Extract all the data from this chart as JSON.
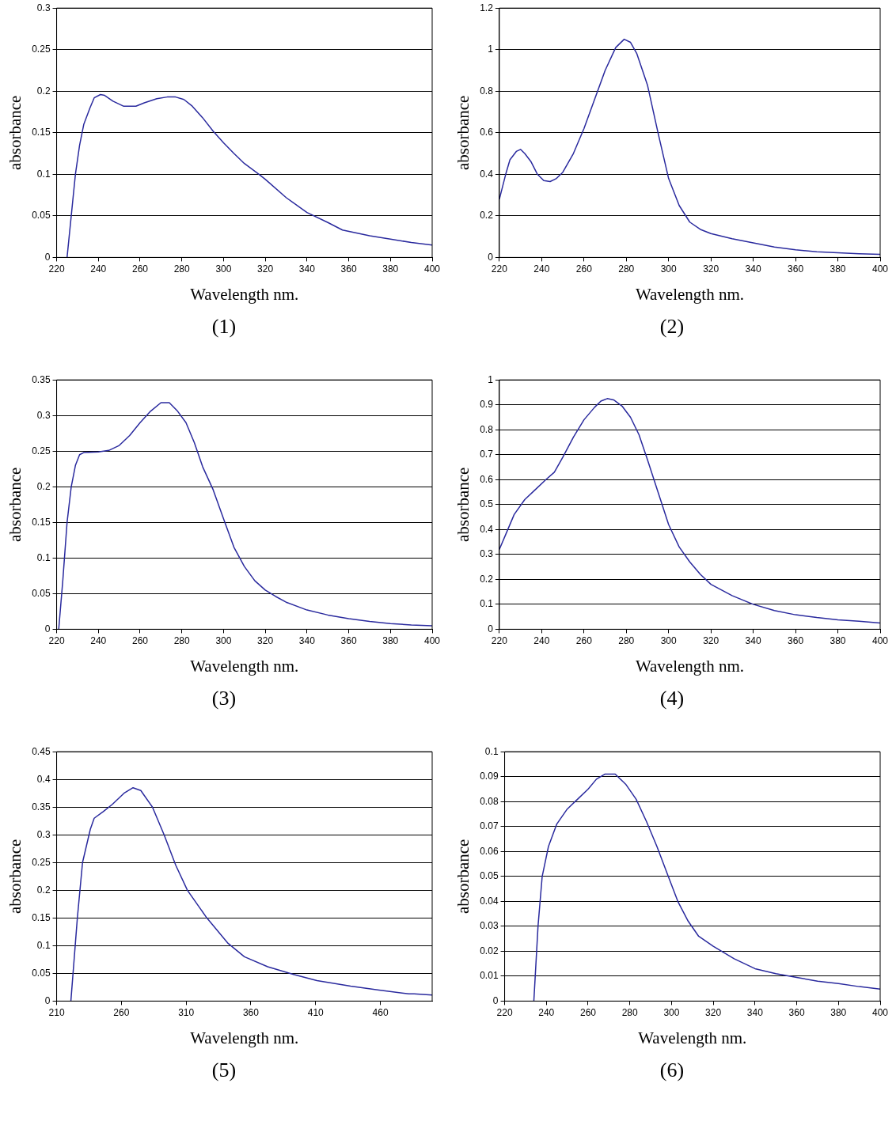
{
  "chart_data": [
    {
      "type": "line",
      "xlabel": "Wavelength nm.",
      "ylabel": "absorbance",
      "annotations": [
        "(1)"
      ],
      "grid": "y",
      "marker": "none",
      "line_style": "solid",
      "legend": false,
      "xlim": [
        220,
        400
      ],
      "xticks": [
        220,
        240,
        260,
        280,
        300,
        320,
        340,
        360,
        380,
        400
      ],
      "ylim": [
        0,
        0.3
      ],
      "yticks": [
        0,
        0.05,
        0.1,
        0.15,
        0.2,
        0.25,
        0.3
      ],
      "series": [
        {
          "color": "#2a2a9e",
          "x": [
            225,
            227,
            229,
            231,
            233,
            236,
            238,
            241,
            243,
            247,
            252,
            258,
            262,
            268,
            273,
            277,
            281,
            285,
            290,
            295,
            300,
            305,
            310,
            317,
            320,
            330,
            340,
            350,
            357,
            370,
            380,
            390,
            400
          ],
          "values": [
            0,
            0.05,
            0.1,
            0.135,
            0.16,
            0.18,
            0.192,
            0.196,
            0.195,
            0.188,
            0.182,
            0.182,
            0.186,
            0.191,
            0.193,
            0.193,
            0.19,
            0.182,
            0.168,
            0.152,
            0.138,
            0.125,
            0.113,
            0.1,
            0.094,
            0.072,
            0.054,
            0.042,
            0.033,
            0.026,
            0.022,
            0.018,
            0.015
          ]
        }
      ]
    },
    {
      "type": "line",
      "xlabel": "Wavelength nm.",
      "ylabel": "absorbance",
      "annotations": [
        "(2)"
      ],
      "grid": "y",
      "marker": "none",
      "line_style": "solid",
      "legend": false,
      "xlim": [
        220,
        400
      ],
      "xticks": [
        220,
        240,
        260,
        280,
        300,
        320,
        340,
        360,
        380,
        400
      ],
      "ylim": [
        0,
        1.2
      ],
      "yticks": [
        0,
        0.2,
        0.4,
        0.6,
        0.8,
        1,
        1.2
      ],
      "series": [
        {
          "color": "#2a2a9e",
          "x": [
            220,
            223,
            225,
            228,
            230,
            232,
            235,
            238,
            241,
            244,
            247,
            250,
            255,
            260,
            265,
            270,
            275,
            279,
            282,
            285,
            290,
            295,
            300,
            305,
            310,
            315,
            320,
            330,
            340,
            350,
            360,
            370,
            380,
            390,
            400
          ],
          "values": [
            0.28,
            0.4,
            0.47,
            0.51,
            0.52,
            0.5,
            0.46,
            0.4,
            0.37,
            0.365,
            0.38,
            0.41,
            0.5,
            0.62,
            0.76,
            0.9,
            1.01,
            1.05,
            1.035,
            0.98,
            0.83,
            0.6,
            0.38,
            0.25,
            0.17,
            0.135,
            0.115,
            0.09,
            0.07,
            0.05,
            0.037,
            0.027,
            0.022,
            0.018,
            0.015
          ]
        }
      ]
    },
    {
      "type": "line",
      "xlabel": "Wavelength nm.",
      "ylabel": "absorbance",
      "annotations": [
        "(3)"
      ],
      "grid": "y",
      "marker": "none",
      "line_style": "solid",
      "legend": false,
      "xlim": [
        220,
        400
      ],
      "xticks": [
        220,
        240,
        260,
        280,
        300,
        320,
        340,
        360,
        380,
        400
      ],
      "ylim": [
        0,
        0.35
      ],
      "yticks": [
        0,
        0.05,
        0.1,
        0.15,
        0.2,
        0.25,
        0.3,
        0.35
      ],
      "series": [
        {
          "color": "#2a2a9e",
          "x": [
            221,
            223,
            225,
            227,
            229,
            231,
            233,
            240,
            245,
            250,
            255,
            260,
            265,
            270,
            274,
            278,
            282,
            286,
            290,
            295,
            300,
            305,
            310,
            315,
            320,
            325,
            330,
            340,
            350,
            360,
            370,
            380,
            390,
            400
          ],
          "values": [
            0,
            0.07,
            0.15,
            0.2,
            0.23,
            0.245,
            0.248,
            0.249,
            0.251,
            0.258,
            0.272,
            0.29,
            0.306,
            0.318,
            0.318,
            0.306,
            0.29,
            0.262,
            0.228,
            0.196,
            0.155,
            0.115,
            0.088,
            0.068,
            0.055,
            0.046,
            0.038,
            0.027,
            0.02,
            0.015,
            0.011,
            0.008,
            0.006,
            0.005
          ]
        }
      ]
    },
    {
      "type": "line",
      "xlabel": "Wavelength nm.",
      "ylabel": "absorbance",
      "annotations": [
        "(4)"
      ],
      "grid": "y",
      "marker": "none",
      "line_style": "solid",
      "legend": false,
      "xlim": [
        220,
        400
      ],
      "xticks": [
        220,
        240,
        260,
        280,
        300,
        320,
        340,
        360,
        380,
        400
      ],
      "ylim": [
        0,
        1
      ],
      "yticks": [
        0,
        0.1,
        0.2,
        0.3,
        0.4,
        0.5,
        0.6,
        0.7,
        0.8,
        0.9,
        1
      ],
      "series": [
        {
          "color": "#2a2a9e",
          "x": [
            220,
            223,
            227,
            232,
            237,
            242,
            246,
            250,
            255,
            260,
            265,
            268,
            271,
            274,
            278,
            282,
            286,
            290,
            295,
            300,
            305,
            310,
            315,
            320,
            330,
            340,
            350,
            360,
            370,
            380,
            390,
            400
          ],
          "values": [
            0.32,
            0.38,
            0.46,
            0.52,
            0.56,
            0.6,
            0.63,
            0.69,
            0.77,
            0.84,
            0.89,
            0.915,
            0.925,
            0.92,
            0.895,
            0.85,
            0.78,
            0.68,
            0.55,
            0.42,
            0.33,
            0.27,
            0.22,
            0.18,
            0.135,
            0.1,
            0.075,
            0.058,
            0.047,
            0.038,
            0.032,
            0.025
          ]
        }
      ]
    },
    {
      "type": "line",
      "xlabel": "Wavelength nm.",
      "ylabel": "absorbance",
      "annotations": [
        "(5)"
      ],
      "grid": "y",
      "marker": "none",
      "line_style": "solid",
      "legend": false,
      "xlim": [
        210,
        500
      ],
      "xticks": [
        210,
        260,
        310,
        360,
        410,
        460
      ],
      "ylim": [
        0,
        0.45
      ],
      "yticks": [
        0,
        0.05,
        0.1,
        0.15,
        0.2,
        0.25,
        0.3,
        0.35,
        0.4,
        0.45
      ],
      "series": [
        {
          "color": "#2a2a9e",
          "x": [
            221,
            226,
            230,
            236,
            239,
            246,
            253,
            262,
            269,
            275,
            284,
            293,
            302,
            311,
            326,
            342,
            355,
            373,
            393,
            411,
            437,
            459,
            482,
            486,
            500
          ],
          "values": [
            0,
            0.15,
            0.25,
            0.31,
            0.33,
            0.342,
            0.355,
            0.375,
            0.385,
            0.38,
            0.35,
            0.3,
            0.245,
            0.2,
            0.15,
            0.105,
            0.08,
            0.062,
            0.048,
            0.037,
            0.027,
            0.02,
            0.013,
            0.013,
            0.011
          ]
        }
      ]
    },
    {
      "type": "line",
      "xlabel": "Wavelength nm.",
      "ylabel": "absorbance",
      "annotations": [
        "(6)"
      ],
      "grid": "y",
      "marker": "none",
      "line_style": "solid",
      "legend": false,
      "xlim": [
        220,
        400
      ],
      "xticks": [
        220,
        240,
        260,
        280,
        300,
        320,
        340,
        360,
        380,
        400
      ],
      "ylim": [
        0,
        0.1
      ],
      "yticks": [
        0,
        0.01,
        0.02,
        0.03,
        0.04,
        0.05,
        0.06,
        0.07,
        0.08,
        0.09,
        0.1
      ],
      "series": [
        {
          "color": "#2a2a9e",
          "x": [
            234,
            236,
            238,
            241,
            245,
            250,
            255,
            260,
            264,
            268,
            273,
            278,
            283,
            288,
            293,
            298,
            303,
            308,
            313,
            320,
            330,
            340,
            350,
            360,
            370,
            380,
            390,
            400
          ],
          "values": [
            0,
            0.03,
            0.05,
            0.062,
            0.071,
            0.077,
            0.081,
            0.085,
            0.089,
            0.091,
            0.091,
            0.087,
            0.081,
            0.072,
            0.062,
            0.051,
            0.04,
            0.032,
            0.026,
            0.022,
            0.017,
            0.013,
            0.011,
            0.0095,
            0.008,
            0.007,
            0.0058,
            0.0048
          ]
        }
      ]
    }
  ]
}
